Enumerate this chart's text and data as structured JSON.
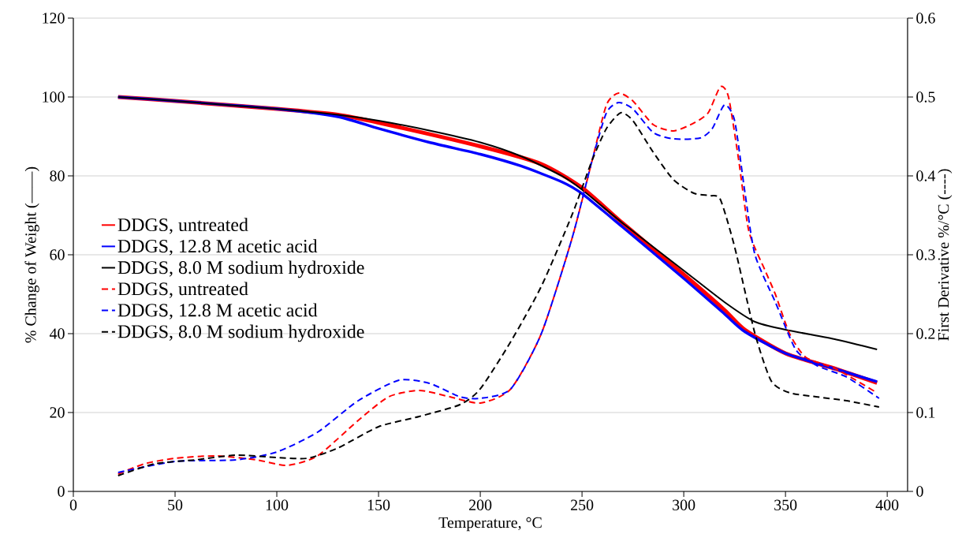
{
  "chart_data": {
    "type": "line",
    "xlabel": "Temperature, °C",
    "ylabel": "% Change of Weight (——)",
    "y2label": "First Derivative %/°C (----)",
    "xlim": [
      0,
      410
    ],
    "xticks": [
      0,
      50,
      100,
      150,
      200,
      250,
      300,
      350,
      400
    ],
    "ylim": [
      0,
      120
    ],
    "yticks": [
      0,
      20,
      40,
      60,
      80,
      100,
      120
    ],
    "y2lim": [
      0,
      0.6
    ],
    "y2ticks": [
      0,
      0.1,
      0.2,
      0.3,
      0.4,
      0.5,
      0.6
    ],
    "grid": "y",
    "legend": "left",
    "series": [
      {
        "name": "DDGS, untreated",
        "color": "#ff0000",
        "axis": "y",
        "line_style": "solid",
        "x": [
          22,
          50,
          100,
          130,
          150,
          200,
          230,
          250,
          270,
          300,
          320,
          330,
          350,
          375,
          395
        ],
        "values": [
          100,
          99,
          97,
          95.5,
          93.5,
          87.5,
          83,
          77,
          68,
          55,
          46,
          41,
          35,
          31,
          27.5
        ]
      },
      {
        "name": "DDGS, 12.8 M acetic acid",
        "color": "#0000ff",
        "axis": "y",
        "line_style": "solid",
        "x": [
          22,
          50,
          100,
          130,
          150,
          175,
          200,
          220,
          240,
          250,
          270,
          300,
          320,
          330,
          350,
          375,
          395
        ],
        "values": [
          100,
          99,
          97,
          95,
          92,
          88.5,
          85.5,
          82.5,
          78.5,
          75.5,
          67,
          54,
          45,
          40.5,
          35,
          31,
          27.8
        ]
      },
      {
        "name": "DDGS, 8.0 M sodium hydroxide",
        "color": "#000000",
        "axis": "y",
        "line_style": "solid",
        "x": [
          22,
          50,
          100,
          130,
          150,
          175,
          200,
          220,
          240,
          250,
          270,
          300,
          320,
          335,
          350,
          375,
          395
        ],
        "values": [
          100,
          99,
          97,
          95.5,
          94,
          91.5,
          88.5,
          85,
          80,
          76.5,
          68,
          56,
          48,
          43,
          41,
          38.5,
          36
        ]
      },
      {
        "name": "DDGS, untreated",
        "color": "#ff0000",
        "axis": "y2",
        "line_style": "dashed",
        "x": [
          22,
          35,
          50,
          70,
          90,
          105,
          120,
          140,
          155,
          170,
          185,
          200,
          215,
          230,
          245,
          255,
          262,
          268,
          275,
          285,
          295,
          305,
          312,
          318,
          322,
          327,
          332,
          340,
          345,
          352,
          360,
          375,
          395
        ],
        "values": [
          0.022,
          0.035,
          0.042,
          0.045,
          0.04,
          0.033,
          0.045,
          0.09,
          0.12,
          0.128,
          0.12,
          0.112,
          0.13,
          0.2,
          0.32,
          0.42,
          0.49,
          0.505,
          0.495,
          0.465,
          0.457,
          0.467,
          0.48,
          0.513,
          0.5,
          0.42,
          0.33,
          0.28,
          0.25,
          0.2,
          0.17,
          0.155,
          0.125
        ]
      },
      {
        "name": "DDGS, 12.8 M acetic acid",
        "color": "#0000ff",
        "axis": "y2",
        "line_style": "dashed",
        "x": [
          22,
          50,
          80,
          100,
          120,
          140,
          160,
          175,
          190,
          200,
          215,
          230,
          245,
          255,
          262,
          268,
          275,
          285,
          295,
          308,
          314,
          320,
          325,
          330,
          335,
          345,
          355,
          365,
          380,
          396
        ],
        "values": [
          0.024,
          0.038,
          0.04,
          0.05,
          0.075,
          0.115,
          0.141,
          0.137,
          0.12,
          0.118,
          0.13,
          0.2,
          0.32,
          0.42,
          0.48,
          0.493,
          0.485,
          0.455,
          0.447,
          0.448,
          0.46,
          0.49,
          0.47,
          0.38,
          0.3,
          0.24,
          0.18,
          0.16,
          0.145,
          0.118
        ]
      },
      {
        "name": "DDGS, 8.0 M sodium hydroxide",
        "color": "#000000",
        "axis": "y2",
        "line_style": "dashed",
        "x": [
          22,
          40,
          60,
          80,
          100,
          115,
          130,
          150,
          170,
          190,
          200,
          215,
          230,
          245,
          255,
          262,
          269,
          275,
          285,
          295,
          305,
          313,
          318,
          325,
          335,
          343,
          352,
          365,
          380,
          396
        ],
        "values": [
          0.02,
          0.035,
          0.04,
          0.046,
          0.043,
          0.042,
          0.055,
          0.082,
          0.095,
          0.11,
          0.13,
          0.19,
          0.26,
          0.35,
          0.42,
          0.46,
          0.48,
          0.47,
          0.43,
          0.395,
          0.378,
          0.375,
          0.37,
          0.31,
          0.2,
          0.14,
          0.125,
          0.12,
          0.115,
          0.107
        ]
      }
    ]
  }
}
